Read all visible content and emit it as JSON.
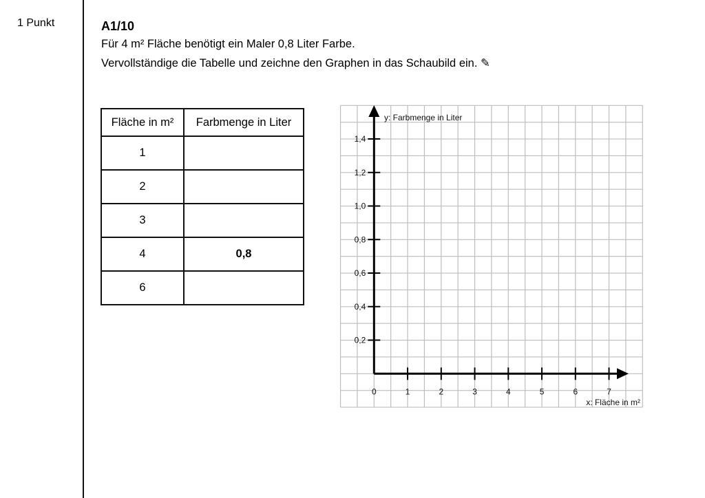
{
  "sidebar": {
    "points": "1 Punkt"
  },
  "task": {
    "title": "A1/10",
    "line1": "Für 4 m² Fläche benötigt ein Maler 0,8 Liter Farbe.",
    "line2": "Vervollständige die Tabelle und zeichne den Graphen in das Schaubild ein. ✎"
  },
  "table": {
    "headers": [
      "Fläche in m²",
      "Farbmenge in Liter"
    ],
    "rows": [
      {
        "area": "1",
        "amount": ""
      },
      {
        "area": "2",
        "amount": ""
      },
      {
        "area": "3",
        "amount": ""
      },
      {
        "area": "4",
        "amount": "0,8"
      },
      {
        "area": "6",
        "amount": ""
      }
    ]
  },
  "chart_data": {
    "type": "line",
    "xlabel": "x: Fläche in m²",
    "ylabel": "y: Farbmenge in Liter",
    "xticks": [
      "0",
      "1",
      "2",
      "3",
      "4",
      "5",
      "6",
      "7"
    ],
    "yticks": [
      "0,2",
      "0,4",
      "0,6",
      "0,8",
      "1,0",
      "1,2",
      "1,4"
    ],
    "xlim": [
      -1,
      8
    ],
    "ylim": [
      -0.2,
      1.6
    ],
    "grid": true,
    "series": []
  }
}
